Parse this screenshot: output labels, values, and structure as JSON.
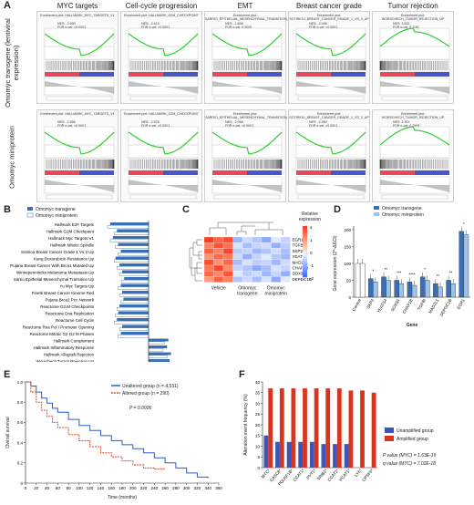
{
  "panels": {
    "A": {
      "label": "A",
      "columns": [
        "MYC targets",
        "Cell-cycle progression",
        "EMT",
        "Breast cancer grade",
        "Tumor rejection"
      ],
      "rows": [
        "Omomyc transgene (lentiviral expression)",
        "Omomyc miniprotein"
      ],
      "plots": [
        [
          {
            "title": "Enrichment plot: HALLMARK_MYC_TARGETS_V1",
            "nes": "NES: -2.690",
            "fdr": "FDR q-val: <0.0001"
          },
          {
            "title": "Enrichment plot: HALLMARK_G2M_CHECKPOINT",
            "nes": "NES: -2.413",
            "fdr": "FDR q-val: <0.0001"
          },
          {
            "title": "Enrichment plot: SARRIO_EPITHELIAL_MESENCHYMAL_TRANSITION_UP",
            "nes": "NES: -1.848",
            "fdr": "FDR q-val: 0.0006"
          },
          {
            "title": "Enrichment plot: SOTIRIOU_BREAST_CANCER_GRADE_1_VS_3_UP",
            "nes": "NES: -2.096",
            "fdr": "FDR q-val: <0.0001"
          },
          {
            "title": "Enrichment plot: WORSCHECH_TUMOR_REJECTION_UP",
            "nes": "NES: 1.632",
            "fdr": "FDR q-val: 0.1161"
          }
        ],
        [
          {
            "title": "Enrichment plot: HALLMARK_MYC_TARGETS_V1",
            "nes": "NES: -2.896",
            "fdr": "FDR q-val: <0.0001"
          },
          {
            "title": "Enrichment plot: HALLMARK_G2M_CHECKPOINT",
            "nes": "NES: -2.576",
            "fdr": "FDR q-val: <0.0001"
          },
          {
            "title": "Enrichment plot: SARRIO_EPITHELIAL_MESENCHYMAL_TRANSITION_UP",
            "nes": "NES: -2.058",
            "fdr": "FDR q-val: <0.0001"
          },
          {
            "title": "Enrichment plot: SOTIRIOU_BREAST_CANCER_GRADE_1_VS_3_UP",
            "nes": "NES: -2.260",
            "fdr": "FDR q-val: <0.0001"
          },
          {
            "title": "Enrichment plot: WORSCHECH_TUMOR_REJECTION_UP",
            "nes": "NES: 1.303",
            "fdr": "FDR q-val: 0.2009"
          }
        ]
      ]
    },
    "B": {
      "label": "B",
      "legend": [
        "Omomyc transgene",
        "Omomyc miniprotein"
      ],
      "xlabel": "Normalized Enrichment Score (NES)",
      "xticks": [
        "-4",
        "-3",
        "-2",
        "-1",
        "0",
        "1",
        "2"
      ],
      "colors": {
        "transgene": "#3a6fb5",
        "miniprotein": "#ffffff"
      },
      "pathways": [
        "Hallmark E2F Targets",
        "Hallmark G2M Checkpoint",
        "Hallmark Myc Targets V1",
        "Hallmark Mitotic Spindle",
        "Sotiriou Breast Cancer Grade 1 Vs 3 Up",
        "Kang Doxorubicin Resistance Up",
        "Pujana Breast Cancer With Brca1 Mutated Up",
        "Winnepenninckx Melanoma Metastasis Up",
        "Sarrio Epithelial Mesenchymal Transition Up",
        "Yu Myc Targets Up",
        "Finetti Breast Cancer Kinome Red",
        "Pujana Brca2 Pcc Network",
        "Reactome G2 M Checkpoints",
        "Reactome Dna Replication",
        "Reactome Cell Cycle",
        "Reactome Rna Pol I Promoter Opening",
        "Reactome Mitotic G2 G2 M Phases",
        "Hallmark Complement",
        "Hallmark Inflammatory Response",
        "Hallmark Allograft Rejection",
        "Worschech Tumor Rejection Up"
      ],
      "transgene": [
        -2.9,
        -2.4,
        -2.7,
        -2.3,
        -2.1,
        -2.5,
        -2.2,
        -2.0,
        -1.85,
        -2.1,
        -2.0,
        -1.9,
        -2.2,
        -2.3,
        -2.4,
        -2.0,
        -2.1,
        1.5,
        1.4,
        1.7,
        1.6
      ],
      "miniprotein": [
        -3.1,
        -2.6,
        -2.9,
        -2.5,
        -2.3,
        -2.6,
        -2.4,
        -2.2,
        -2.06,
        -2.3,
        -2.2,
        -2.1,
        -2.4,
        -2.5,
        -2.6,
        -2.2,
        -2.3,
        1.2,
        1.1,
        1.4,
        1.3
      ]
    },
    "C": {
      "label": "C",
      "legend_title": "Relative expression",
      "scale": [
        "2",
        "1",
        "0",
        "-1",
        "-2"
      ],
      "genes": [
        "EGR1",
        "TGFBI",
        "SKP2",
        "YEATS4",
        "MAD2L1",
        "CHAF1B",
        "SOX9A",
        "DEPDC1B"
      ],
      "groups": [
        "Vehicle",
        "Omomyc transgene",
        "Omomyc miniprotein"
      ],
      "matrix": [
        [
          2,
          1.5,
          1.8,
          -1,
          -0.5,
          -0.8,
          -1.2,
          -0.3,
          -0.6
        ],
        [
          1.2,
          1.8,
          1.4,
          -0.4,
          -0.9,
          -0.6,
          -0.5,
          -1.1,
          -0.7
        ],
        [
          1.6,
          1.2,
          1.9,
          -0.7,
          -0.6,
          -1.0,
          -0.8,
          -0.5,
          -0.9
        ],
        [
          1.0,
          1.5,
          1.3,
          -0.5,
          -1.1,
          -0.6,
          -0.3,
          -0.8,
          -1.0
        ],
        [
          1.8,
          1.0,
          1.5,
          -0.9,
          -0.4,
          -0.7,
          -0.6,
          -1.0,
          -0.5
        ],
        [
          1.3,
          1.9,
          1.1,
          -0.6,
          -0.8,
          -1.2,
          -0.9,
          -0.4,
          -0.6
        ],
        [
          1.5,
          1.1,
          1.7,
          -0.3,
          -0.7,
          -0.5,
          -1.0,
          -0.6,
          -1.1
        ],
        [
          0.9,
          1.6,
          1.2,
          -0.8,
          -0.5,
          -0.9,
          -0.4,
          -1.2,
          -0.3
        ]
      ]
    },
    "D": {
      "label": "D",
      "legend": [
        "Omomyc transgene",
        "Omomyc miniprotein"
      ],
      "ylabel": "Gene expression (2^-ΔΔCt)",
      "xlabel": "Gene",
      "yticks": [
        "0",
        "50",
        "100",
        "150",
        "200"
      ],
      "categories": [
        "Control",
        "SKP2",
        "YEATS4",
        "SOX9A",
        "CHAF1B",
        "TGFBI",
        "MAD2L1",
        "DEPDC1B",
        "EGR1"
      ],
      "transgene": [
        100,
        55,
        60,
        50,
        45,
        60,
        40,
        50,
        195
      ],
      "miniprotein": [
        100,
        45,
        50,
        40,
        35,
        50,
        30,
        40,
        185
      ],
      "sig": [
        "",
        "*",
        "**",
        "***",
        "****",
        "*",
        "**",
        "**",
        "*"
      ]
    },
    "E": {
      "label": "E",
      "ylabel": "Overall survival",
      "xlabel": "Time (months)",
      "legend": [
        "Unaltered group (n = 4,531)",
        "Altered group (n = 290)"
      ],
      "pvalue": "P = 0.0006",
      "yticks": [
        "0",
        "0.2",
        "0.4",
        "0.6",
        "0.8",
        "1.0"
      ],
      "xticks": [
        "0",
        "20",
        "40",
        "60",
        "80",
        "100",
        "120",
        "140",
        "160",
        "180",
        "200",
        "220",
        "240",
        "260",
        "280",
        "300",
        "320",
        "340",
        "360"
      ]
    },
    "F": {
      "label": "F",
      "ylabel": "Alteration event frequency (%)",
      "legend": [
        "Unamplified group",
        "Amplified group"
      ],
      "pvalue": "P value (MYC) = 1.63E-19",
      "qvalue": "q value (MYC) = 7.02E-18",
      "yticks": [
        "0",
        "5",
        "10",
        "15",
        "20",
        "25",
        "30",
        "35",
        "40"
      ],
      "categories": [
        "MYC*",
        "CASC8*",
        "POU5F1B*",
        "CCAT1*",
        "PVT1*",
        "TRIB2*",
        "CCAT2*",
        "PCAT1*",
        "LY6*",
        "CPSF6*"
      ],
      "unamplified": [
        15,
        12,
        12,
        12,
        12,
        11,
        11,
        11,
        0,
        0
      ],
      "amplified": [
        37,
        37,
        37,
        37,
        37,
        37,
        37,
        36,
        36,
        35
      ]
    }
  }
}
